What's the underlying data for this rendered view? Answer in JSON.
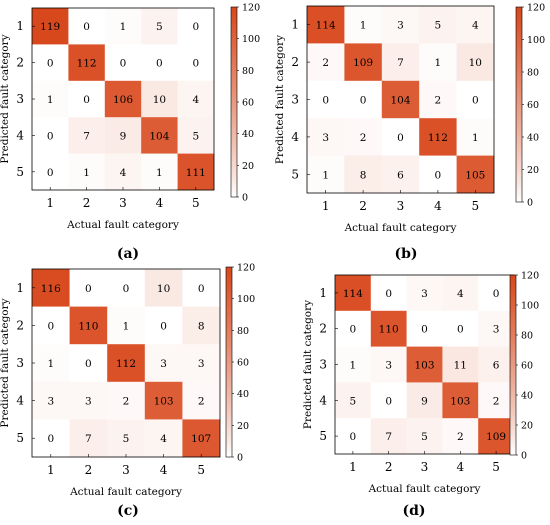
{
  "chart_data": [
    {
      "type": "heatmap",
      "panel_label": "(a)",
      "xlabel": "Actual fault category",
      "ylabel": "Predicted fault category",
      "x_ticks": [
        "1",
        "2",
        "3",
        "4",
        "5"
      ],
      "y_ticks": [
        "1",
        "2",
        "3",
        "4",
        "5"
      ],
      "colorbar_ticks": [
        "0",
        "20",
        "40",
        "60",
        "80",
        "100",
        "120"
      ],
      "colorbar_range": [
        0,
        120
      ],
      "matrix": [
        [
          119,
          0,
          1,
          5,
          0
        ],
        [
          0,
          112,
          0,
          0,
          0
        ],
        [
          1,
          0,
          106,
          10,
          4
        ],
        [
          0,
          7,
          9,
          104,
          5
        ],
        [
          0,
          1,
          4,
          1,
          111
        ]
      ]
    },
    {
      "type": "heatmap",
      "panel_label": "(b)",
      "xlabel": "Actual fault category",
      "ylabel": "Predicted fault category",
      "x_ticks": [
        "1",
        "2",
        "3",
        "4",
        "5"
      ],
      "y_ticks": [
        "1",
        "2",
        "3",
        "4",
        "5"
      ],
      "colorbar_ticks": [
        "0",
        "20",
        "40",
        "60",
        "80",
        "100",
        "120"
      ],
      "colorbar_range": [
        0,
        120
      ],
      "matrix": [
        [
          114,
          1,
          3,
          5,
          4
        ],
        [
          2,
          109,
          7,
          1,
          10
        ],
        [
          0,
          0,
          104,
          2,
          0
        ],
        [
          3,
          2,
          0,
          112,
          1
        ],
        [
          1,
          8,
          6,
          0,
          105
        ]
      ]
    },
    {
      "type": "heatmap",
      "panel_label": "(c)",
      "xlabel": "Actual fault category",
      "ylabel": "Predicted fault category",
      "x_ticks": [
        "1",
        "2",
        "3",
        "4",
        "5"
      ],
      "y_ticks": [
        "1",
        "2",
        "3",
        "4",
        "5"
      ],
      "colorbar_ticks": [
        "0",
        "20",
        "40",
        "60",
        "80",
        "100",
        "120"
      ],
      "colorbar_range": [
        0,
        120
      ],
      "matrix": [
        [
          116,
          0,
          0,
          10,
          0
        ],
        [
          0,
          110,
          1,
          0,
          8
        ],
        [
          1,
          0,
          112,
          3,
          3
        ],
        [
          3,
          3,
          2,
          103,
          2
        ],
        [
          0,
          7,
          5,
          4,
          107
        ]
      ]
    },
    {
      "type": "heatmap",
      "panel_label": "(d)",
      "xlabel": "Actual fault category",
      "ylabel": "Predicted fault category",
      "x_ticks": [
        "1",
        "2",
        "3",
        "4",
        "5"
      ],
      "y_ticks": [
        "1",
        "2",
        "3",
        "4",
        "5"
      ],
      "colorbar_ticks": [
        "0",
        "20",
        "40",
        "60",
        "80",
        "100",
        "120"
      ],
      "colorbar_range": [
        0,
        120
      ],
      "matrix": [
        [
          114,
          0,
          3,
          4,
          0
        ],
        [
          0,
          110,
          0,
          0,
          3
        ],
        [
          1,
          3,
          103,
          11,
          6
        ],
        [
          5,
          0,
          9,
          103,
          2
        ],
        [
          0,
          7,
          5,
          2,
          109
        ]
      ]
    }
  ],
  "colors": {
    "low": "#ffffff",
    "high": "#d8471b",
    "axis": "#000000",
    "text": "#000000"
  }
}
